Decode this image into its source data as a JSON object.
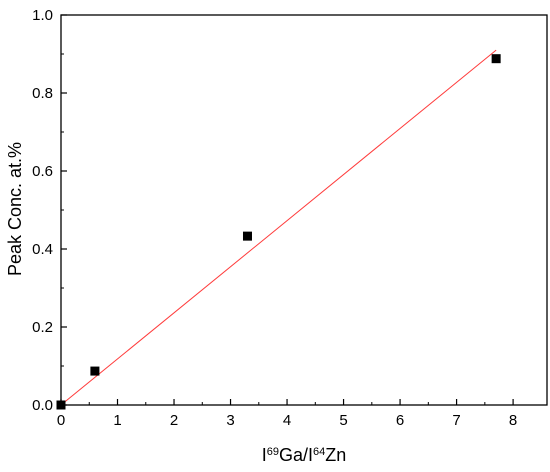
{
  "chart_data": {
    "type": "scatter",
    "xlabel_parts": {
      "p1": "I",
      "sup1": "69",
      "p2": "Ga/I",
      "sup2": "64",
      "p3": "Zn"
    },
    "ylabel": "Peak Conc. at.%",
    "xlim": [
      0,
      8.6
    ],
    "ylim": [
      0,
      1.0
    ],
    "xticks": [
      0,
      1,
      2,
      3,
      4,
      5,
      6,
      7,
      8
    ],
    "xtick_labels": [
      "0",
      "1",
      "2",
      "3",
      "4",
      "5",
      "6",
      "7",
      "8"
    ],
    "yticks": [
      0,
      0.2,
      0.4,
      0.6,
      0.8,
      1.0
    ],
    "ytick_labels": [
      "0.0",
      "0.2",
      "0.4",
      "0.6",
      "0.8",
      "1.0"
    ],
    "series": [
      {
        "x": [
          0.0,
          0.6,
          3.3,
          7.7
        ],
        "y": [
          0.0,
          0.087,
          0.433,
          0.888
        ],
        "marker": "square",
        "color": "#000000"
      }
    ],
    "fit_line": {
      "x": [
        0.0,
        7.7
      ],
      "y": [
        0.0,
        0.91
      ],
      "color": "#ff3b3b"
    },
    "grid": false,
    "legend": false
  }
}
